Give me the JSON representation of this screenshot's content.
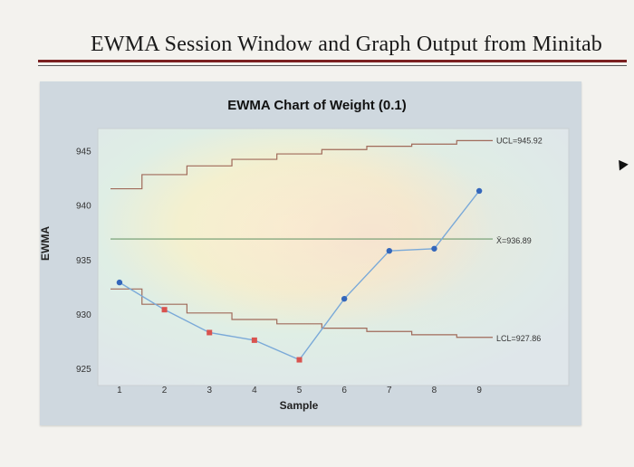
{
  "slide_title": "EWMA Session Window and Graph Output from Minitab",
  "chart_data": {
    "type": "line",
    "title": "EWMA Chart of Weight (0.1)",
    "xlabel": "Sample",
    "ylabel": "EWMA",
    "x": [
      1,
      2,
      3,
      4,
      5,
      6,
      7,
      8,
      9
    ],
    "xlim": [
      0.8,
      9.3
    ],
    "ylim": [
      924.6,
      946.2
    ],
    "yticks": [
      925,
      930,
      935,
      940,
      945
    ],
    "series": [
      {
        "values": [
          932.9,
          930.4,
          928.3,
          927.6,
          925.8,
          931.4,
          935.8,
          936.0,
          941.3
        ],
        "color": "#7aa9d8",
        "out_of_control_color": "#d9534f",
        "point_color": "#3366bb",
        "out_of_control": [
          false,
          true,
          true,
          true,
          true,
          false,
          false,
          false,
          false
        ]
      }
    ],
    "control_limits": {
      "center": {
        "value": 936.89,
        "label": "X̄=936.89",
        "color": "#6e9a6e"
      },
      "ucl": {
        "label": "UCL=945.92",
        "values": [
          941.5,
          942.8,
          943.6,
          944.2,
          944.7,
          945.1,
          945.4,
          945.6,
          945.92
        ],
        "color": "#a06a5a"
      },
      "lcl": {
        "label": "LCL=927.86",
        "values": [
          932.3,
          930.9,
          930.1,
          929.5,
          929.1,
          928.7,
          928.4,
          928.1,
          927.86
        ],
        "color": "#a06a5a"
      }
    },
    "grid": false,
    "legend": "none"
  }
}
